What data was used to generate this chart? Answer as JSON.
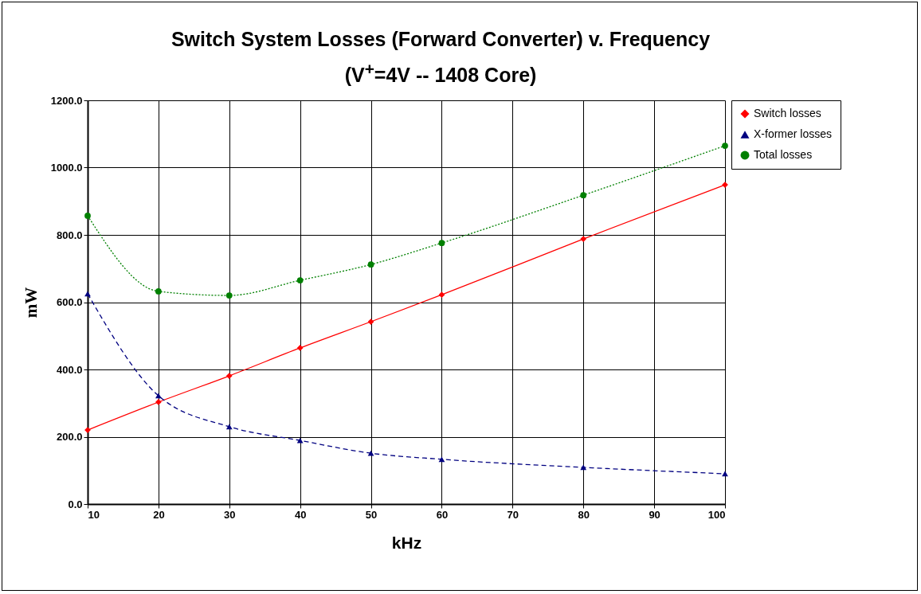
{
  "chart_data": {
    "type": "line",
    "title": "Switch System Losses (Forward Converter) v. Frequency\n(V$^{+}$=4V -- 1408 Core)",
    "xlabel": "kHz",
    "ylabel": "mW",
    "x": [
      10,
      20,
      30,
      40,
      50,
      60,
      80,
      100
    ],
    "series": [
      {
        "name": "Switch losses",
        "color": "#ff0000",
        "marker": "diamond",
        "line_style": "solid",
        "values": [
          220,
          303,
          381,
          464,
          542,
          622,
          788,
          949
        ]
      },
      {
        "name": "X-former losses",
        "color": "#000080",
        "marker": "triangle",
        "line_style": "dashed",
        "values": [
          625,
          322,
          230,
          189,
          151,
          133,
          109,
          90
        ]
      },
      {
        "name": "Total losses",
        "color": "#008000",
        "marker": "circle",
        "line_style": "dotted",
        "values": [
          857,
          632,
          620,
          665,
          712,
          776,
          918,
          1065
        ]
      }
    ],
    "xlim": [
      10,
      100
    ],
    "xticks": [
      10,
      20,
      30,
      40,
      50,
      60,
      70,
      80,
      90,
      100
    ],
    "ylim": [
      0,
      1200
    ],
    "yticks": [
      {
        "value": 0,
        "label": "0.0"
      },
      {
        "value": 200,
        "label": "200.0"
      },
      {
        "value": 400,
        "label": "400.0"
      },
      {
        "value": 600,
        "label": "600.0"
      },
      {
        "value": 800,
        "label": "800.0"
      },
      {
        "value": 1000,
        "label": "1000.0"
      },
      {
        "value": 1200,
        "label": "1200.0"
      }
    ],
    "grid": true,
    "legend": "right"
  }
}
